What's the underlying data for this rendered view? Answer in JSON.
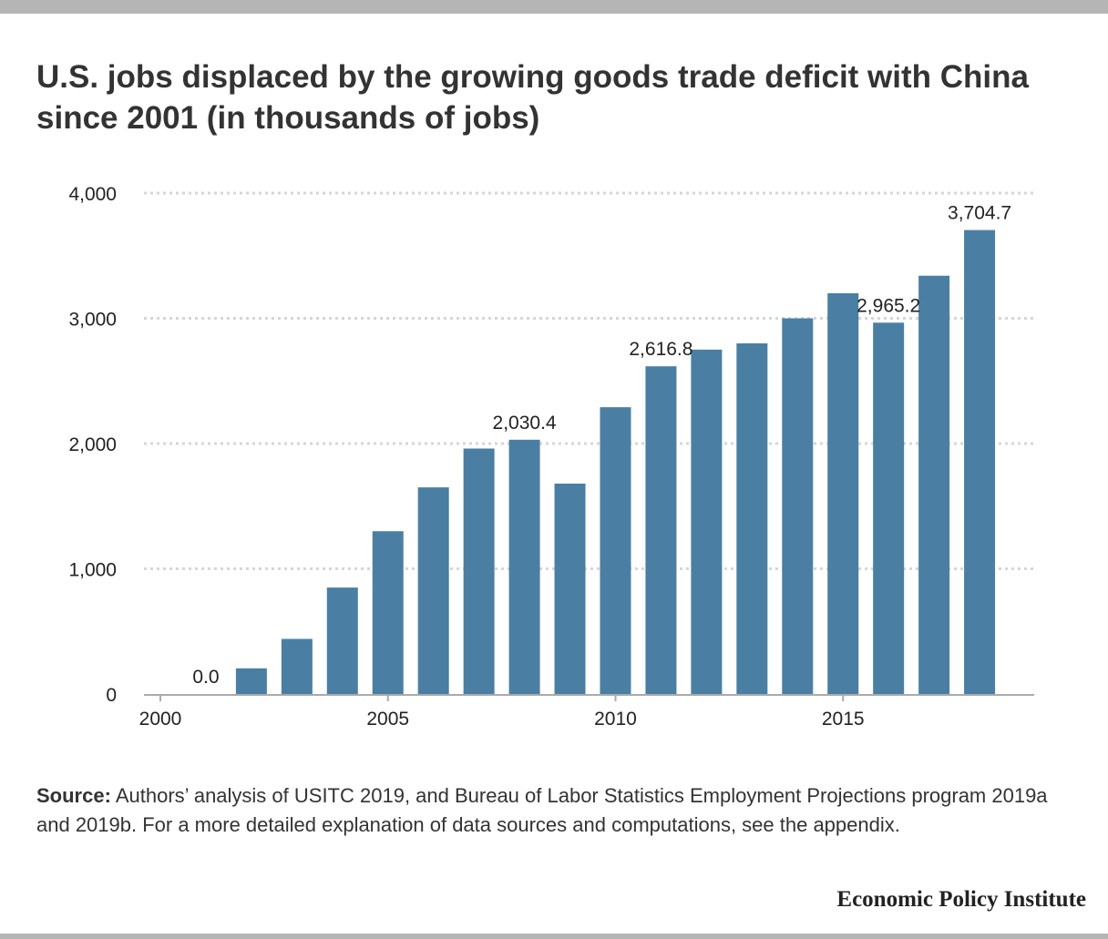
{
  "title": "U.S. jobs displaced by the growing goods trade deficit with China since 2001 (in thousands of jobs)",
  "source": {
    "label": "Source:",
    "text": "Authors’ analysis of USITC 2019, and Bureau of Labor Statistics Employment Projections program 2019a and 2019b. For a more detailed explanation of data sources and computations, see the appendix."
  },
  "brand": "Economic Policy Institute",
  "colors": {
    "bar": "#4a7fa3",
    "grid": "#d6d6d6",
    "axis": "#aaaaaa",
    "top_bar": "#b5b5b5"
  },
  "chart_data": {
    "type": "bar",
    "title": "U.S. jobs displaced by the growing goods trade deficit with China since 2001 (in thousands of jobs)",
    "x": [
      2001,
      2002,
      2003,
      2004,
      2005,
      2006,
      2007,
      2008,
      2009,
      2010,
      2011,
      2012,
      2013,
      2014,
      2015,
      2016,
      2017,
      2018
    ],
    "values": [
      0.0,
      205,
      440,
      850,
      1300,
      1650,
      1960,
      2030.4,
      1680,
      2290,
      2616.8,
      2750,
      2800,
      3000,
      3200,
      2965.2,
      3340,
      3704.7
    ],
    "data_labels": [
      {
        "x": 2001,
        "text": "0.0"
      },
      {
        "x": 2008,
        "text": "2,030.4"
      },
      {
        "x": 2011,
        "text": "2,616.8"
      },
      {
        "x": 2016,
        "text": "2,965.2"
      },
      {
        "x": 2018,
        "text": "3,704.7"
      }
    ],
    "y_ticks": [
      0,
      1000,
      2000,
      3000,
      4000
    ],
    "y_tick_labels": [
      "0",
      "1,000",
      "2,000",
      "3,000",
      "4,000"
    ],
    "x_ticks": [
      2000,
      2005,
      2010,
      2015
    ],
    "x_tick_labels": [
      "2000",
      "2005",
      "2010",
      "2015"
    ],
    "xlim": [
      2000,
      2019.2
    ],
    "ylim": [
      0,
      4000
    ],
    "xlabel": "",
    "ylabel": "",
    "grid": true,
    "legend": "none"
  }
}
